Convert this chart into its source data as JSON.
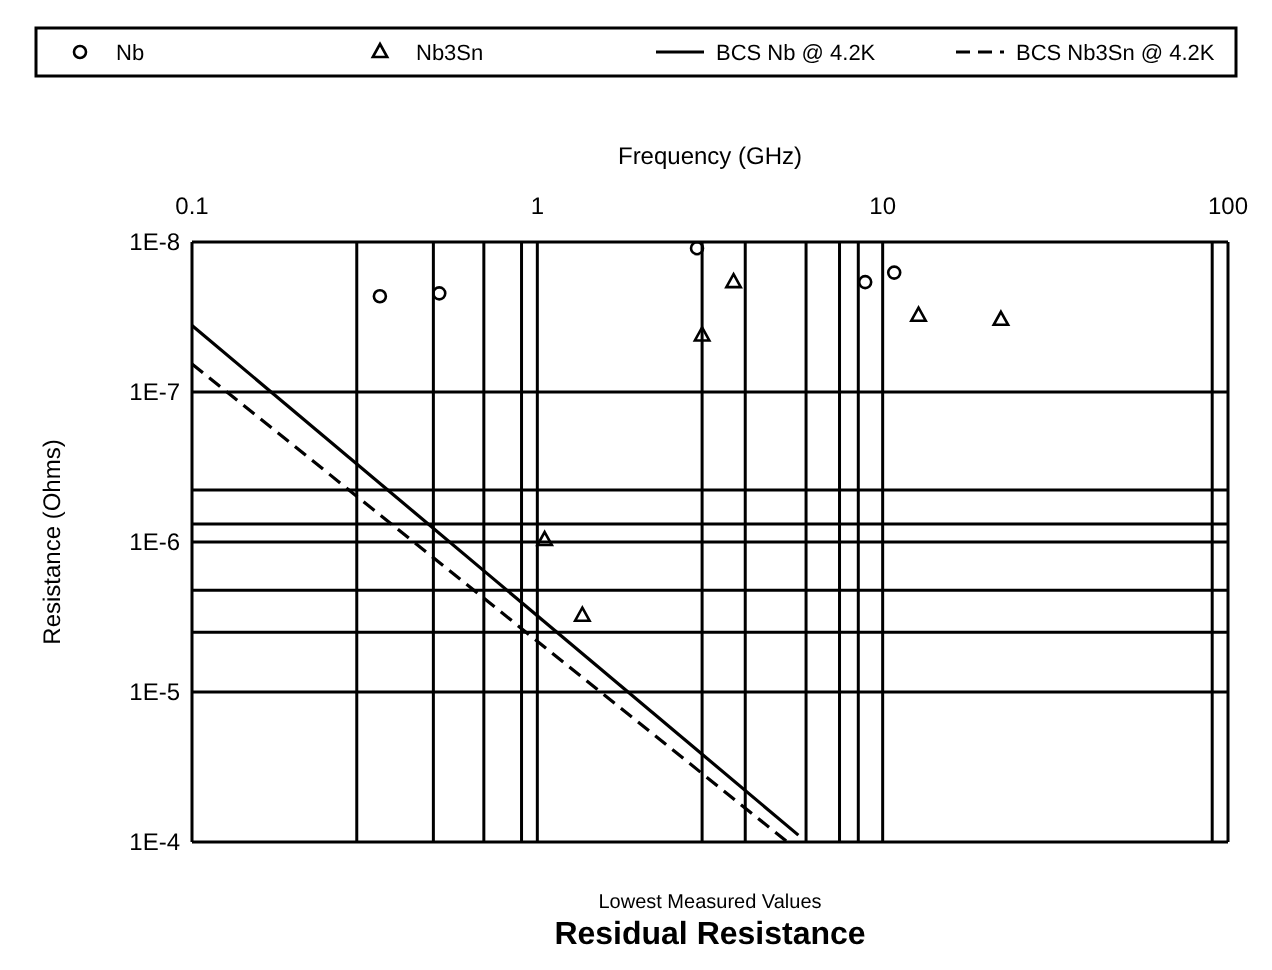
{
  "chart_data": {
    "type": "scatter",
    "title": "Residual Resistance",
    "subtitle": "Lowest Measured Values",
    "xlabel": "Frequency (GHz)",
    "ylabel": "Resistance (Ohms)",
    "log": "xy",
    "grid": true,
    "legend": "top",
    "xlim": [
      0.1,
      100
    ],
    "xticks": [
      0.1,
      {
        "value": 0.3,
        "label": null
      },
      {
        "value": 0.5,
        "label": null
      },
      {
        "value": 0.7,
        "label": null
      },
      {
        "value": 0.9,
        "label": null
      },
      1,
      {
        "value": 3,
        "label": null
      },
      {
        "value": 4,
        "label": null
      },
      {
        "value": 6,
        "label": null
      },
      {
        "value": 7.5,
        "label": null
      },
      {
        "value": 8.5,
        "label": null
      },
      10,
      {
        "value": 90,
        "label": null
      },
      100
    ],
    "ylim": [
      0.0001,
      1e-08
    ],
    "yticks": [
      {
        "value": 1e-08,
        "label": "1E-8"
      },
      {
        "value": 1e-07,
        "label": "1E-7"
      },
      {
        "value": 4.5e-07,
        "label": null
      },
      {
        "value": 7.6e-07,
        "label": null
      },
      {
        "value": 1e-06,
        "label": "1E-6"
      },
      {
        "value": 2.1e-06,
        "label": null
      },
      {
        "value": 4e-06,
        "label": null
      },
      {
        "value": 1e-05,
        "label": "1E-5"
      },
      {
        "value": 0.0001,
        "label": "1E-4"
      }
    ],
    "series": [
      {
        "name": "Nb",
        "marker": "circle",
        "color": "#000000",
        "x": [
          0.35,
          0.52,
          2.9,
          8.9,
          10.8
        ],
        "values": [
          2.3e-08,
          2.2e-08,
          1.1e-08,
          1.85e-08,
          1.6e-08
        ]
      },
      {
        "name": "Nb3Sn",
        "marker": "triangle",
        "color": "#000000",
        "x": [
          3.7,
          3.0,
          12.7,
          22,
          1.05,
          1.35
        ],
        "values": [
          1.85e-08,
          4.2e-08,
          3.1e-08,
          3.3e-08,
          9.7e-07,
          3.1e-06
        ]
      },
      {
        "name": "BCS Nb @ 4.2K",
        "type": "line",
        "line_style": "solid",
        "color": "#000000",
        "x": [
          0.1,
          5.7
        ],
        "values": [
          3.6e-08,
          9e-05
        ]
      },
      {
        "name": "BCS Nb3Sn @ 4.2K",
        "type": "line",
        "line_style": "dashed",
        "color": "#000000",
        "x": [
          0.1,
          5.3
        ],
        "values": [
          6.5e-08,
          0.0001
        ]
      }
    ]
  }
}
